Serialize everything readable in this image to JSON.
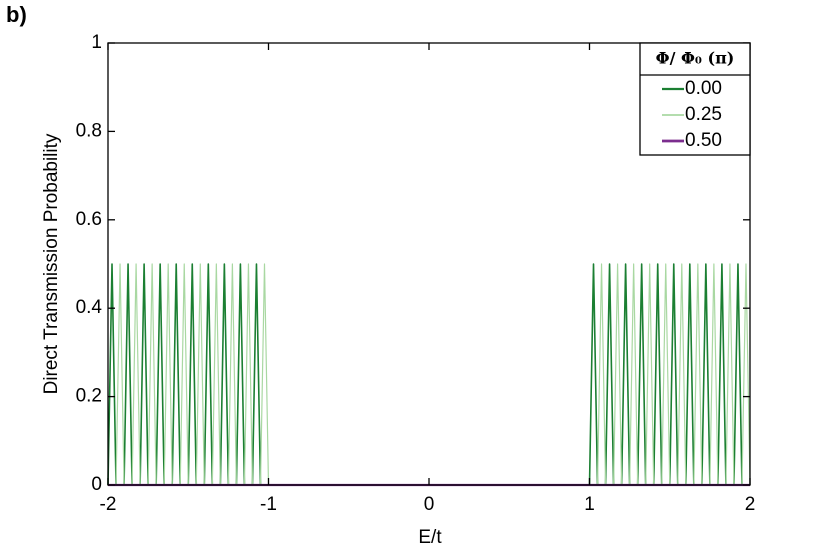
{
  "chart_data": {
    "type": "line",
    "panel_label": "b)",
    "xlabel": "E/t",
    "ylabel": "Direct Transmission Probability",
    "legend_title": "Φ/ Φ₀ (π)",
    "legend_position": "upper right",
    "grid": false,
    "xlim": [
      -2,
      2
    ],
    "xticks": [
      -2,
      -1,
      0,
      1,
      2
    ],
    "ylim": [
      0,
      1
    ],
    "yticks": [
      0,
      0.2,
      0.4,
      0.6,
      0.8,
      1
    ],
    "x": [
      -2,
      -1.975,
      -1.95,
      -1.925,
      -1.9,
      -1.875,
      -1.85,
      -1.825,
      -1.8,
      -1.775,
      -1.75,
      -1.725,
      -1.7,
      -1.675,
      -1.65,
      -1.625,
      -1.6,
      -1.575,
      -1.55,
      -1.525,
      -1.5,
      -1.475,
      -1.45,
      -1.425,
      -1.4,
      -1.375,
      -1.35,
      -1.325,
      -1.3,
      -1.275,
      -1.25,
      -1.225,
      -1.2,
      -1.175,
      -1.15,
      -1.125,
      -1.1,
      -1.075,
      -1.05,
      -1.025,
      -1,
      1,
      1.025,
      1.05,
      1.075,
      1.1,
      1.125,
      1.15,
      1.175,
      1.2,
      1.225,
      1.25,
      1.275,
      1.3,
      1.325,
      1.35,
      1.375,
      1.4,
      1.425,
      1.45,
      1.475,
      1.5,
      1.525,
      1.55,
      1.575,
      1.6,
      1.625,
      1.65,
      1.675,
      1.7,
      1.725,
      1.75,
      1.775,
      1.8,
      1.825,
      1.85,
      1.875,
      1.9,
      1.925,
      1.95,
      1.975,
      2
    ],
    "series": [
      {
        "name": "0.00",
        "color": "#1b7f32",
        "width": 1.6,
        "values": [
          0,
          0.5,
          0,
          0,
          0,
          0.5,
          0,
          0,
          0,
          0.5,
          0,
          0,
          0,
          0.5,
          0,
          0,
          0,
          0.5,
          0,
          0,
          0,
          0.5,
          0,
          0,
          0,
          0.5,
          0,
          0,
          0,
          0.5,
          0,
          0,
          0,
          0.5,
          0,
          0,
          0,
          0.5,
          0,
          0,
          0,
          0,
          0.5,
          0,
          0,
          0,
          0.5,
          0,
          0,
          0,
          0.5,
          0,
          0,
          0,
          0.5,
          0,
          0,
          0,
          0.5,
          0,
          0,
          0,
          0.5,
          0,
          0,
          0,
          0.5,
          0,
          0,
          0,
          0.5,
          0,
          0,
          0,
          0.5,
          0,
          0,
          0,
          0.5,
          0,
          0,
          0
        ]
      },
      {
        "name": "0.25",
        "color": "#a9d8a2",
        "width": 1.2,
        "values": [
          0,
          0,
          0,
          0.5,
          0,
          0,
          0,
          0.5,
          0,
          0,
          0,
          0.5,
          0,
          0,
          0,
          0.5,
          0,
          0,
          0,
          0.5,
          0,
          0,
          0,
          0.5,
          0,
          0,
          0,
          0.5,
          0,
          0,
          0,
          0.5,
          0,
          0,
          0,
          0.5,
          0,
          0,
          0,
          0.5,
          0,
          0,
          0,
          0,
          0.5,
          0,
          0,
          0,
          0.5,
          0,
          0,
          0,
          0.5,
          0,
          0,
          0,
          0.5,
          0,
          0,
          0,
          0.5,
          0,
          0,
          0,
          0.5,
          0,
          0,
          0,
          0.5,
          0,
          0,
          0,
          0.5,
          0,
          0,
          0,
          0.5,
          0,
          0,
          0,
          0.5,
          0
        ]
      },
      {
        "name": "0.50",
        "color": "#7b2d8e",
        "width": 2.2,
        "x": [
          -2,
          2
        ],
        "values": [
          0,
          0
        ]
      }
    ]
  }
}
